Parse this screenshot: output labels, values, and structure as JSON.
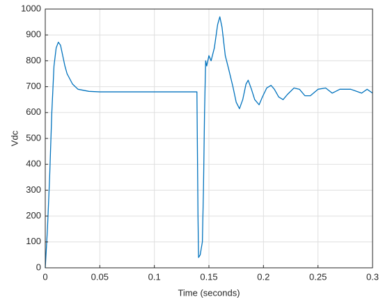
{
  "chart_data": {
    "type": "line",
    "xlabel": "Time (seconds)",
    "ylabel": "Vdc",
    "x": [
      0,
      0.002,
      0.004,
      0.006,
      0.008,
      0.01,
      0.012,
      0.014,
      0.016,
      0.018,
      0.02,
      0.025,
      0.03,
      0.04,
      0.05,
      0.1,
      0.139,
      0.14,
      0.1405,
      0.142,
      0.144,
      0.145,
      0.146,
      0.147,
      0.148,
      0.15,
      0.152,
      0.155,
      0.158,
      0.16,
      0.162,
      0.165,
      0.168,
      0.172,
      0.175,
      0.178,
      0.181,
      0.184,
      0.186,
      0.189,
      0.192,
      0.196,
      0.199,
      0.203,
      0.207,
      0.21,
      0.214,
      0.218,
      0.222,
      0.228,
      0.233,
      0.238,
      0.243,
      0.25,
      0.257,
      0.263,
      0.27,
      0.28,
      0.29,
      0.295,
      0.3
    ],
    "series": [
      {
        "name": "Vdc",
        "color": "#0072bd",
        "values": [
          0,
          150,
          350,
          600,
          780,
          850,
          872,
          860,
          820,
          780,
          750,
          710,
          690,
          682,
          680,
          680,
          680,
          200,
          40,
          50,
          100,
          300,
          600,
          800,
          780,
          820,
          800,
          850,
          940,
          970,
          930,
          820,
          770,
          700,
          640,
          615,
          650,
          710,
          725,
          690,
          650,
          630,
          660,
          695,
          705,
          690,
          660,
          650,
          670,
          695,
          690,
          665,
          665,
          690,
          695,
          675,
          690,
          690,
          675,
          690,
          675
        ]
      }
    ],
    "xlim": [
      0,
      0.3
    ],
    "xticks": [
      0,
      0.05,
      0.1,
      0.15,
      0.2,
      0.25,
      0.3
    ],
    "ylim": [
      0,
      1000
    ],
    "yticks": [
      0,
      100,
      200,
      300,
      400,
      500,
      600,
      700,
      800,
      900,
      1000
    ],
    "grid": true
  }
}
